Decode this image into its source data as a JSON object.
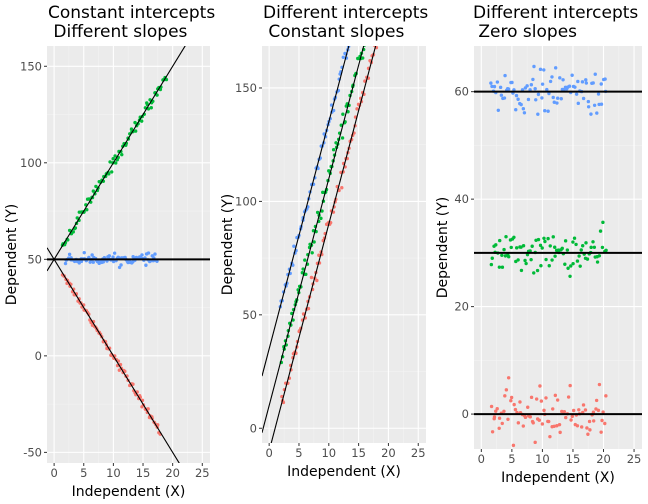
{
  "colors": {
    "panel_bg": "#ebebeb",
    "grid_major": "#ffffff",
    "grid_minor": "#f3f3f3",
    "tick": "#333333",
    "fit_line": "#000000",
    "series": [
      "#f8766d",
      "#00ba38",
      "#619cff"
    ]
  },
  "chart_data": [
    {
      "type": "scatter",
      "title": [
        "Constant intercepts",
        "Different slopes"
      ],
      "xlabel": "Independent (X)",
      "ylabel": "Dependent (Y)",
      "xlim": [
        -1.2,
        26.3
      ],
      "ylim": [
        -55.5,
        160.5
      ],
      "xticks": [
        0,
        5,
        10,
        15,
        20,
        25
      ],
      "yticks": [
        -50,
        0,
        50,
        100,
        150
      ],
      "grid": true,
      "series": [
        {
          "color": "#f8766d",
          "intercept": 50,
          "slope": -5,
          "x_range": [
            1.3,
            18.0
          ],
          "y_noise": 1.0,
          "n": 90
        },
        {
          "color": "#00ba38",
          "intercept": 50,
          "slope": 5,
          "x_range": [
            1.3,
            19.0
          ],
          "y_noise": 1.5,
          "n": 90
        },
        {
          "color": "#619cff",
          "intercept": 50,
          "slope": 0,
          "x_range": [
            1.8,
            17.5
          ],
          "y_noise": 1.2,
          "n": 90
        }
      ],
      "fit_lines": [
        {
          "intercept": 50,
          "slope": -5
        },
        {
          "intercept": 50,
          "slope": 5
        },
        {
          "intercept": 50,
          "slope": 0
        }
      ]
    },
    {
      "type": "scatter",
      "title": [
        "Different intercepts",
        "Constant slopes"
      ],
      "xlabel": "Independent (X)",
      "ylabel": "Dependent (Y)",
      "xlim": [
        -1.2,
        26.3
      ],
      "ylim": [
        -6.5,
        168.5
      ],
      "xticks": [
        0,
        5,
        10,
        15,
        20,
        25
      ],
      "yticks": [
        0,
        50,
        100,
        150
      ],
      "grid": true,
      "series": [
        {
          "color": "#f8766d",
          "intercept": -10,
          "slope": 10,
          "x_range": [
            2.0,
            18.5
          ],
          "y_noise": 2.0,
          "n": 90
        },
        {
          "color": "#00ba38",
          "intercept": 10,
          "slope": 10,
          "x_range": [
            2.0,
            17.5
          ],
          "y_noise": 2.0,
          "n": 90
        },
        {
          "color": "#619cff",
          "intercept": 35,
          "slope": 10,
          "x_range": [
            1.8,
            18.5
          ],
          "y_noise": 2.0,
          "n": 90
        }
      ],
      "fit_lines": [
        {
          "intercept": -10,
          "slope": 10
        },
        {
          "intercept": 10,
          "slope": 10
        },
        {
          "intercept": 35,
          "slope": 10
        }
      ]
    },
    {
      "type": "scatter",
      "title": [
        "Different intercepts",
        "Zero slopes"
      ],
      "xlabel": "Independent (X)",
      "ylabel": "Dependent (Y)",
      "xlim": [
        -1.2,
        26.3
      ],
      "ylim": [
        -6.5,
        68.5
      ],
      "xticks": [
        0,
        5,
        10,
        15,
        20,
        25
      ],
      "yticks": [
        0,
        20,
        40,
        60
      ],
      "grid": true,
      "series": [
        {
          "color": "#f8766d",
          "intercept": 0,
          "slope": 0,
          "x_range": [
            1.5,
            20.5
          ],
          "y_noise": 2.2,
          "n": 90
        },
        {
          "color": "#00ba38",
          "intercept": 30,
          "slope": 0,
          "x_range": [
            1.5,
            20.5
          ],
          "y_noise": 1.8,
          "n": 90
        },
        {
          "color": "#619cff",
          "intercept": 60,
          "slope": 0,
          "x_range": [
            1.5,
            20.5
          ],
          "y_noise": 2.0,
          "n": 90
        }
      ],
      "fit_lines": [
        {
          "intercept": 0,
          "slope": 0
        },
        {
          "intercept": 30,
          "slope": 0
        },
        {
          "intercept": 60,
          "slope": 0
        }
      ]
    }
  ]
}
